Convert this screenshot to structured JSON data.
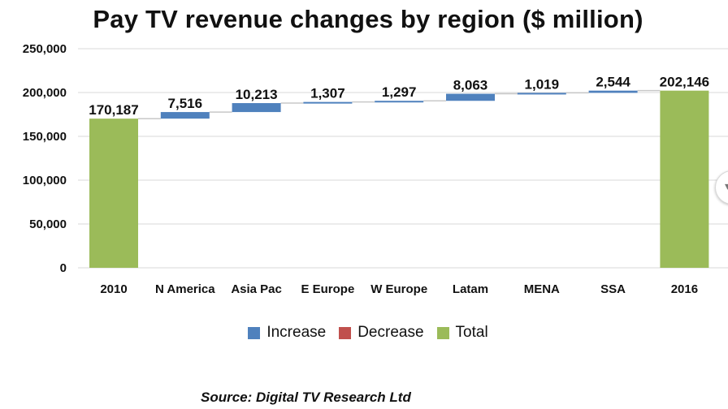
{
  "chart_data": {
    "type": "bar",
    "subtype": "waterfall",
    "title": "Pay TV revenue changes by region ($ million)",
    "categories": [
      "2010",
      "N America",
      "Asia Pac",
      "E Europe",
      "W Europe",
      "Latam",
      "MENA",
      "SSA",
      "2016"
    ],
    "values": [
      170187,
      7516,
      10213,
      1307,
      1297,
      8063,
      1019,
      2544,
      202146
    ],
    "data_labels": [
      "170,187",
      "7,516",
      "10,213",
      "1,307",
      "1,297",
      "8,063",
      "1,019",
      "2,544",
      "202,146"
    ],
    "kinds": [
      "total",
      "increase",
      "increase",
      "increase",
      "increase",
      "increase",
      "increase",
      "increase",
      "total"
    ],
    "yticks": [
      "0",
      "50,000",
      "100,000",
      "150,000",
      "200,000",
      "250,000"
    ],
    "ylim": [
      0,
      250000
    ],
    "grid": true,
    "legend": {
      "position": "bottom",
      "entries": [
        {
          "label": "Increase",
          "color": "#4f81bd"
        },
        {
          "label": "Decrease",
          "color": "#c0504d"
        },
        {
          "label": "Total",
          "color": "#9bbb59"
        }
      ]
    },
    "source": "Source: Digital TV Research Ltd"
  },
  "colors": {
    "increase": "#4f81bd",
    "decrease": "#c0504d",
    "total": "#9bbb59",
    "grid": "#d9d9d9",
    "connector": "#c8c8c8"
  },
  "icons": {
    "scroll_handle": "chevron-down-icon"
  }
}
